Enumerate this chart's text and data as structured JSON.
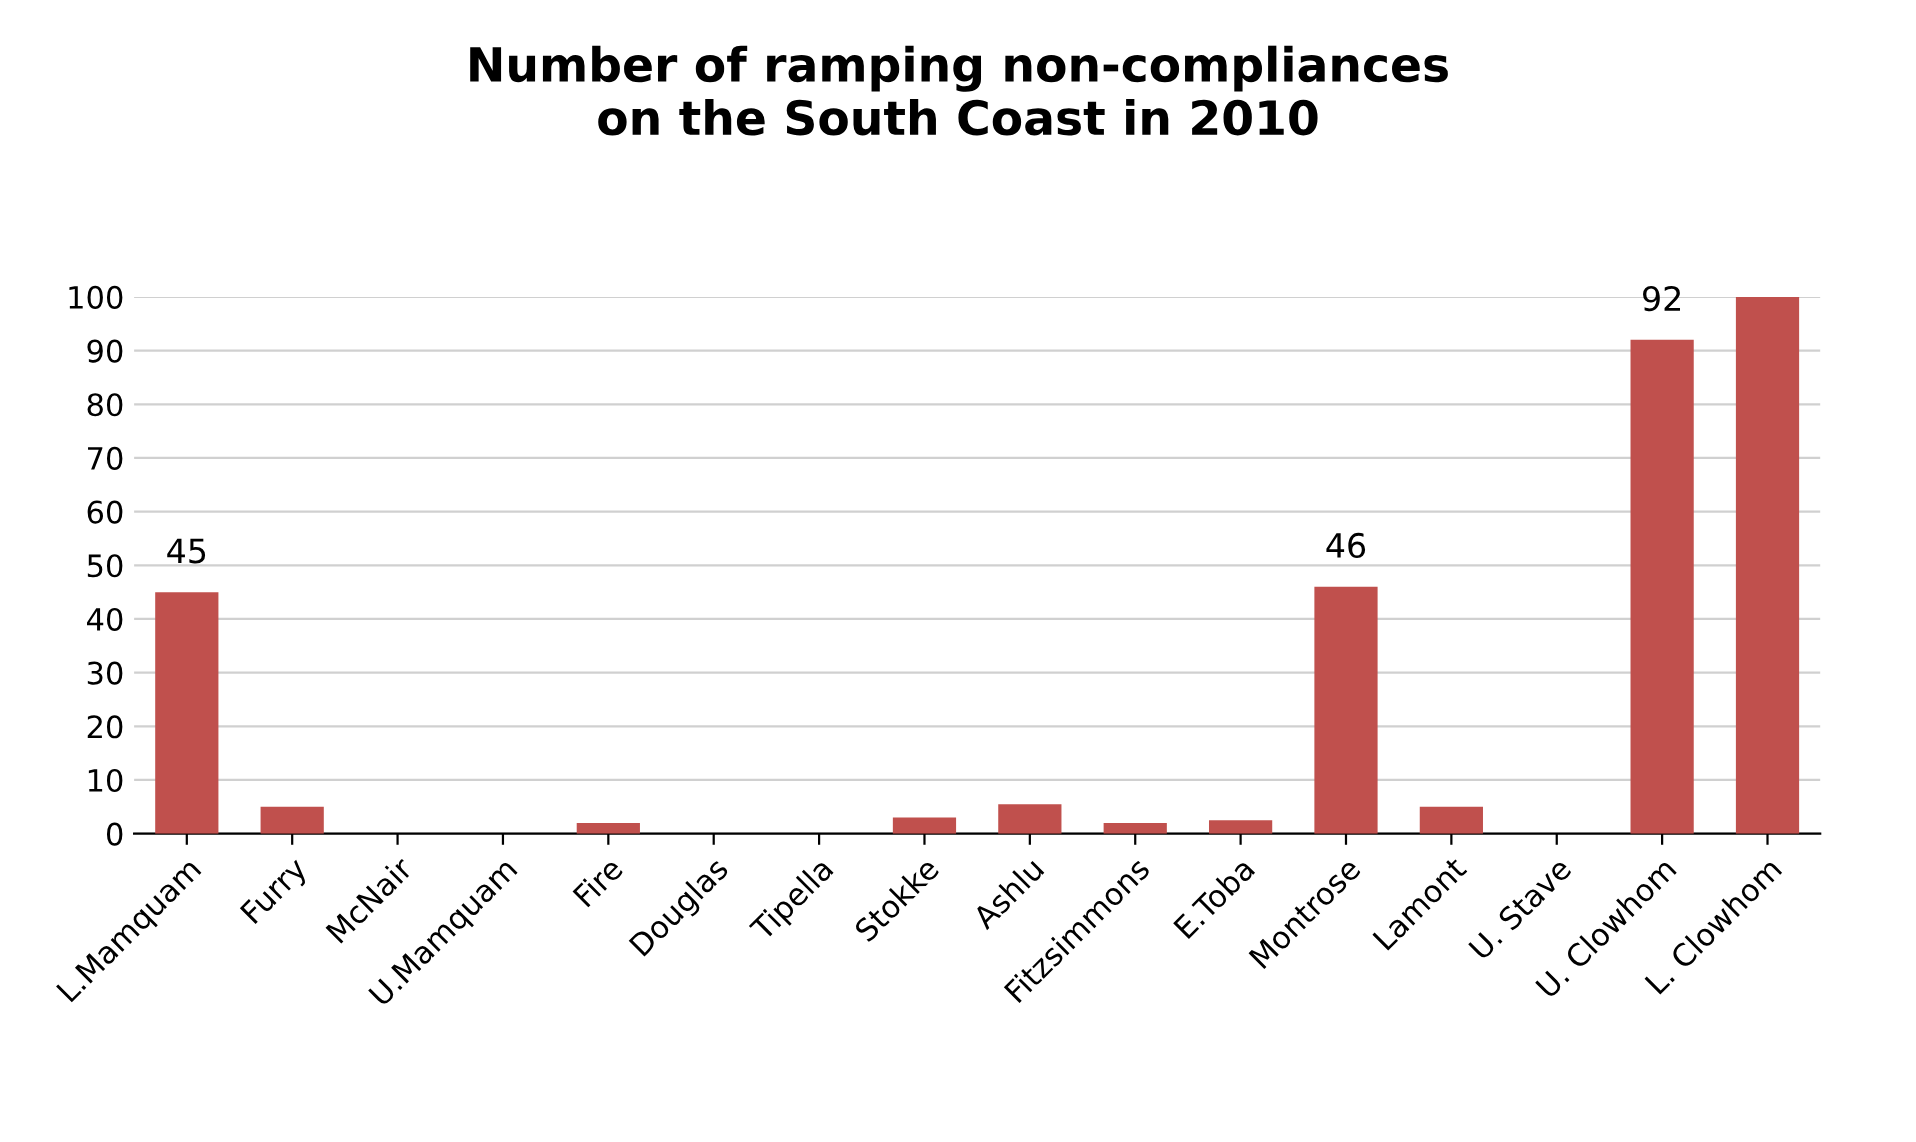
{
  "chart_data": {
    "type": "bar",
    "title": "Number of ramping non-compliances\non the South Coast in 2010",
    "categories": [
      "L.Mamquam",
      "Furry",
      "McNair",
      "U.Mamquam",
      "Fire",
      "Douglas",
      "Tipella",
      "Stokke",
      "Ashlu",
      "Fitzsimmons",
      "E.Toba",
      "Montrose",
      "Lamont",
      "U. Stave",
      "U. Clowhom",
      "L. Clowhom"
    ],
    "values": [
      45,
      5,
      0,
      0,
      2,
      0,
      0,
      3,
      5.5,
      2,
      2.5,
      46,
      5,
      0,
      92,
      100
    ],
    "value_labels": [
      "45",
      null,
      null,
      null,
      null,
      null,
      null,
      null,
      null,
      null,
      null,
      "46",
      null,
      null,
      "92",
      null
    ],
    "color": "#c0504d",
    "ylim": [
      0,
      100
    ],
    "yticks": [
      0,
      10,
      20,
      30,
      40,
      50,
      60,
      70,
      80,
      90,
      100
    ],
    "grid": "y",
    "legend": false
  }
}
